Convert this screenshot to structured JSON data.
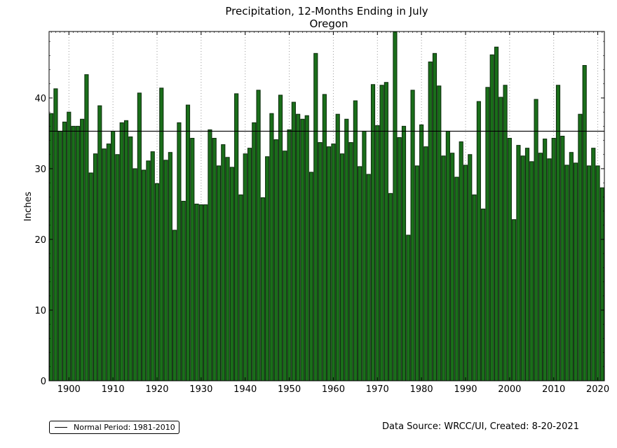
{
  "chart_data": {
    "type": "bar",
    "title": "Precipitation, 12-Months Ending in July",
    "subtitle": "Oregon",
    "xlabel": "",
    "ylabel": "Inches",
    "ylim": [
      0,
      49.4
    ],
    "xlim": [
      1895.5,
      2021.5
    ],
    "grid": "x-dotted",
    "bar_color": "#1a6e1a",
    "bar_edge_color": "#0b2a0b",
    "xticks": [
      1900,
      1910,
      1920,
      1930,
      1940,
      1950,
      1960,
      1970,
      1980,
      1990,
      2000,
      2010,
      2020
    ],
    "yticks": [
      0,
      10,
      20,
      30,
      40
    ],
    "normal": {
      "label": "Normal Period: 1981-2010",
      "value": 35.3
    },
    "x": [
      1896,
      1897,
      1898,
      1899,
      1900,
      1901,
      1902,
      1903,
      1904,
      1905,
      1906,
      1907,
      1908,
      1909,
      1910,
      1911,
      1912,
      1913,
      1914,
      1915,
      1916,
      1917,
      1918,
      1919,
      1920,
      1921,
      1922,
      1923,
      1924,
      1925,
      1926,
      1927,
      1928,
      1929,
      1930,
      1931,
      1932,
      1933,
      1934,
      1935,
      1936,
      1937,
      1938,
      1939,
      1940,
      1941,
      1942,
      1943,
      1944,
      1945,
      1946,
      1947,
      1948,
      1949,
      1950,
      1951,
      1952,
      1953,
      1954,
      1955,
      1956,
      1957,
      1958,
      1959,
      1960,
      1961,
      1962,
      1963,
      1964,
      1965,
      1966,
      1967,
      1968,
      1969,
      1970,
      1971,
      1972,
      1973,
      1974,
      1975,
      1976,
      1977,
      1978,
      1979,
      1980,
      1981,
      1982,
      1983,
      1984,
      1985,
      1986,
      1987,
      1988,
      1989,
      1990,
      1991,
      1992,
      1993,
      1994,
      1995,
      1996,
      1997,
      1998,
      1999,
      2000,
      2001,
      2002,
      2003,
      2004,
      2005,
      2006,
      2007,
      2008,
      2009,
      2010,
      2011,
      2012,
      2013,
      2014,
      2015,
      2016,
      2017,
      2018,
      2019,
      2020,
      2021
    ],
    "values": [
      37.8,
      41.3,
      35.3,
      36.6,
      38.0,
      36.0,
      36.0,
      37.0,
      43.3,
      29.4,
      32.1,
      38.9,
      32.8,
      33.5,
      35.3,
      32.0,
      36.5,
      36.8,
      34.5,
      30.0,
      40.7,
      29.8,
      31.1,
      32.4,
      27.9,
      41.4,
      31.2,
      32.3,
      21.3,
      36.5,
      25.4,
      39.0,
      34.3,
      25.0,
      24.9,
      24.9,
      35.5,
      34.3,
      30.4,
      33.4,
      31.6,
      30.2,
      40.6,
      26.3,
      32.1,
      32.9,
      36.5,
      41.1,
      25.9,
      31.7,
      37.8,
      34.1,
      40.4,
      32.5,
      35.5,
      39.4,
      37.7,
      37.0,
      37.5,
      29.5,
      46.3,
      33.7,
      40.5,
      33.1,
      33.5,
      37.7,
      32.1,
      37.0,
      33.7,
      39.6,
      30.3,
      35.3,
      29.2,
      41.9,
      36.1,
      41.8,
      42.2,
      26.5,
      49.4,
      34.4,
      36.0,
      20.6,
      41.1,
      30.4,
      36.2,
      33.1,
      45.1,
      46.3,
      41.7,
      31.8,
      35.3,
      32.2,
      28.8,
      33.8,
      30.5,
      32.0,
      26.3,
      39.5,
      24.3,
      41.5,
      46.1,
      47.2,
      40.1,
      41.8,
      34.3,
      22.8,
      33.3,
      31.8,
      32.9,
      31.0,
      39.8,
      32.2,
      34.2,
      31.4,
      34.3,
      41.8,
      34.6,
      30.5,
      32.3,
      30.8,
      37.7,
      44.6,
      30.4,
      32.9,
      30.4,
      27.3
    ],
    "legend": {
      "placement": "bottom-left",
      "entries": [
        "Normal Period: 1981-2010"
      ]
    },
    "annotations": [
      "Data Source: WRCC/UI, Created: 8-20-2021"
    ]
  },
  "footer": {
    "legend_label": "Normal Period: 1981-2010",
    "source": "Data Source: WRCC/UI, Created: 8-20-2021"
  }
}
